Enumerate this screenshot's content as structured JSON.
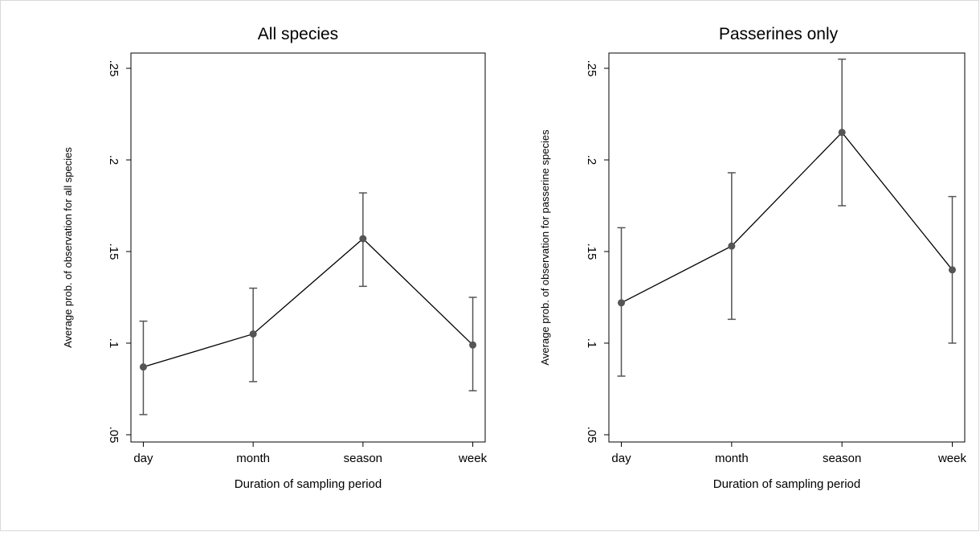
{
  "chart_data": [
    {
      "type": "line",
      "title": "All species",
      "xlabel": "Duration of sampling period",
      "ylabel": "Average prob. of observation for all species",
      "categories": [
        "day",
        "month",
        "season",
        "week"
      ],
      "values": [
        0.087,
        0.105,
        0.157,
        0.099
      ],
      "ci_low": [
        0.061,
        0.079,
        0.131,
        0.074
      ],
      "ci_high": [
        0.112,
        0.13,
        0.182,
        0.125
      ],
      "yticks": [
        0.05,
        0.1,
        0.15,
        0.2,
        0.25
      ],
      "ytick_labels": [
        ".05",
        ".1",
        ".15",
        ".2",
        ".25"
      ],
      "ylim": [
        0.05,
        0.25
      ],
      "grid": false,
      "colors": {
        "line": "#000000",
        "marker": "#555555",
        "errorbar": "#555555"
      }
    },
    {
      "type": "line",
      "title": "Passerines only",
      "xlabel": "Duration of sampling period",
      "ylabel": "Average prob. of observation for passerine species",
      "categories": [
        "day",
        "month",
        "season",
        "week"
      ],
      "values": [
        0.122,
        0.153,
        0.215,
        0.14
      ],
      "ci_low": [
        0.082,
        0.113,
        0.175,
        0.1
      ],
      "ci_high": [
        0.163,
        0.193,
        0.255,
        0.18
      ],
      "yticks": [
        0.05,
        0.1,
        0.15,
        0.2,
        0.25
      ],
      "ytick_labels": [
        ".05",
        ".1",
        ".15",
        ".2",
        ".25"
      ],
      "ylim": [
        0.05,
        0.25
      ],
      "grid": false,
      "colors": {
        "line": "#000000",
        "marker": "#555555",
        "errorbar": "#555555"
      }
    }
  ]
}
